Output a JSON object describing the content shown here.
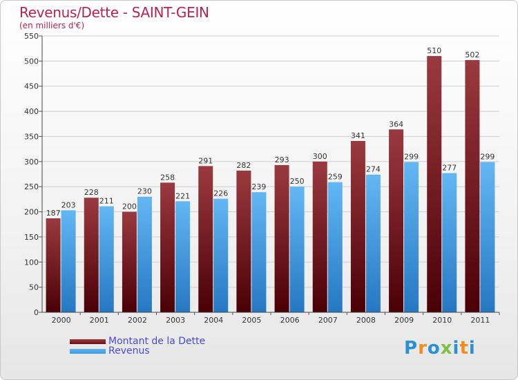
{
  "title": "Revenus/Dette - SAINT-GEIN",
  "subtitle": "(en milliers d'€)",
  "colors": {
    "dette": "#6b0f14",
    "revenus": "#3d9ae0",
    "title": "#b5244f",
    "legend_text": "#4a4ad8"
  },
  "legend": {
    "dette_label": "Montant de la Dette",
    "revenus_label": "Revenus"
  },
  "logo": {
    "text": "Proxiti",
    "letters": [
      "P",
      "r",
      "o",
      "x",
      "i",
      "t",
      "i"
    ],
    "letter_colors": [
      "#2a8fd6",
      "#f28c1c",
      "#2a8fd6",
      "#7cc242",
      "#2a8fd6",
      "#f28c1c",
      "#2a8fd6"
    ]
  },
  "chart_data": {
    "type": "bar",
    "title": "Revenus/Dette - SAINT-GEIN",
    "subtitle": "(en milliers d'€)",
    "categories": [
      "2000",
      "2001",
      "2002",
      "2003",
      "2004",
      "2005",
      "2006",
      "2007",
      "2008",
      "2009",
      "2010",
      "2011"
    ],
    "series": [
      {
        "name": "Montant de la Dette",
        "values": [
          187,
          228,
          200,
          258,
          291,
          282,
          293,
          300,
          341,
          364,
          510,
          502
        ]
      },
      {
        "name": "Revenus",
        "values": [
          203,
          211,
          230,
          221,
          226,
          239,
          250,
          259,
          274,
          299,
          277,
          299
        ]
      }
    ],
    "ylim": [
      0,
      550
    ],
    "yticks": [
      0,
      50,
      100,
      150,
      200,
      250,
      300,
      350,
      400,
      450,
      500,
      550
    ],
    "grid": true,
    "legend_position": "bottom-left"
  }
}
